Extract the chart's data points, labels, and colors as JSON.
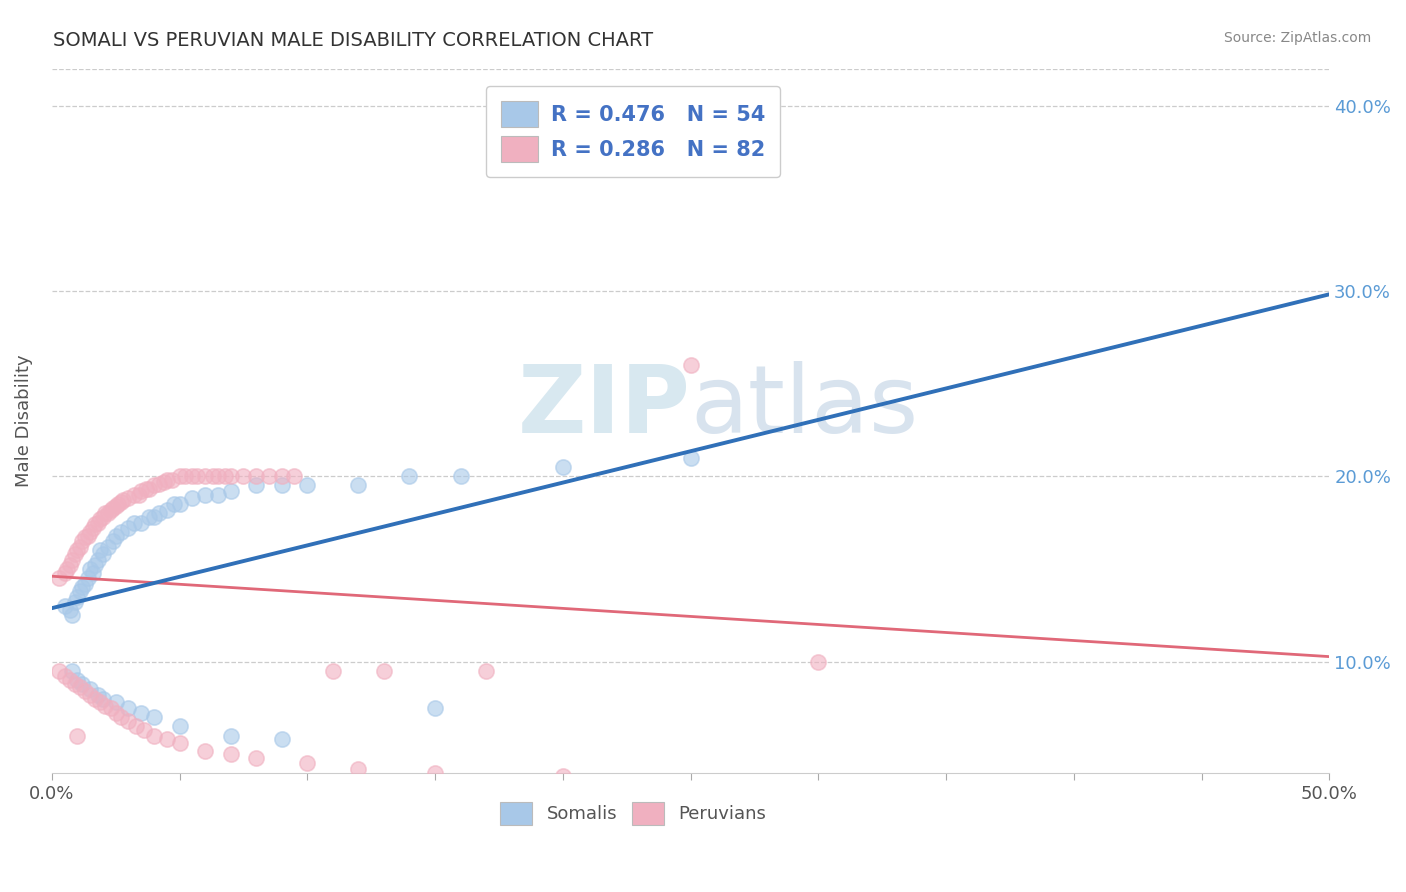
{
  "title": "SOMALI VS PERUVIAN MALE DISABILITY CORRELATION CHART",
  "source": "Source: ZipAtlas.com",
  "ylabel": "Male Disability",
  "xlim": [
    0.0,
    0.5
  ],
  "ylim": [
    0.04,
    0.42
  ],
  "yticks": [
    0.1,
    0.2,
    0.3,
    0.4
  ],
  "ytick_labels": [
    "10.0%",
    "20.0%",
    "30.0%",
    "40.0%"
  ],
  "somali_R": 0.476,
  "somali_N": 54,
  "peruvian_R": 0.286,
  "peruvian_N": 82,
  "somali_color": "#a8c8e8",
  "peruvian_color": "#f0b0c0",
  "somali_line_color": "#3070b8",
  "peruvian_line_color": "#e06878",
  "legend_text_color": "#4472c4",
  "somali_x": [
    0.005,
    0.007,
    0.008,
    0.009,
    0.01,
    0.011,
    0.012,
    0.013,
    0.014,
    0.015,
    0.016,
    0.017,
    0.018,
    0.019,
    0.02,
    0.022,
    0.024,
    0.025,
    0.027,
    0.03,
    0.032,
    0.035,
    0.038,
    0.04,
    0.042,
    0.045,
    0.048,
    0.05,
    0.055,
    0.06,
    0.065,
    0.07,
    0.08,
    0.09,
    0.1,
    0.12,
    0.14,
    0.16,
    0.2,
    0.25,
    0.008,
    0.01,
    0.012,
    0.015,
    0.018,
    0.02,
    0.025,
    0.03,
    0.035,
    0.04,
    0.05,
    0.07,
    0.09,
    0.15
  ],
  "somali_y": [
    0.13,
    0.128,
    0.125,
    0.132,
    0.135,
    0.138,
    0.14,
    0.142,
    0.145,
    0.15,
    0.148,
    0.152,
    0.155,
    0.16,
    0.158,
    0.162,
    0.165,
    0.168,
    0.17,
    0.172,
    0.175,
    0.175,
    0.178,
    0.178,
    0.18,
    0.182,
    0.185,
    0.185,
    0.188,
    0.19,
    0.19,
    0.192,
    0.195,
    0.195,
    0.195,
    0.195,
    0.2,
    0.2,
    0.205,
    0.21,
    0.095,
    0.09,
    0.088,
    0.085,
    0.082,
    0.08,
    0.078,
    0.075,
    0.072,
    0.07,
    0.065,
    0.06,
    0.058,
    0.075
  ],
  "peruvian_x": [
    0.003,
    0.005,
    0.006,
    0.007,
    0.008,
    0.009,
    0.01,
    0.011,
    0.012,
    0.013,
    0.014,
    0.015,
    0.016,
    0.017,
    0.018,
    0.019,
    0.02,
    0.021,
    0.022,
    0.023,
    0.024,
    0.025,
    0.026,
    0.027,
    0.028,
    0.03,
    0.032,
    0.034,
    0.035,
    0.037,
    0.038,
    0.04,
    0.042,
    0.044,
    0.045,
    0.047,
    0.05,
    0.052,
    0.055,
    0.057,
    0.06,
    0.063,
    0.065,
    0.068,
    0.07,
    0.075,
    0.08,
    0.085,
    0.09,
    0.095,
    0.003,
    0.005,
    0.007,
    0.009,
    0.011,
    0.013,
    0.015,
    0.017,
    0.019,
    0.021,
    0.023,
    0.025,
    0.027,
    0.03,
    0.033,
    0.036,
    0.04,
    0.045,
    0.05,
    0.06,
    0.07,
    0.08,
    0.1,
    0.12,
    0.15,
    0.2,
    0.25,
    0.11,
    0.13,
    0.17,
    0.3,
    0.01
  ],
  "peruvian_y": [
    0.145,
    0.148,
    0.15,
    0.152,
    0.155,
    0.158,
    0.16,
    0.162,
    0.165,
    0.167,
    0.168,
    0.17,
    0.172,
    0.174,
    0.175,
    0.177,
    0.178,
    0.18,
    0.18,
    0.182,
    0.183,
    0.184,
    0.185,
    0.186,
    0.187,
    0.188,
    0.19,
    0.19,
    0.192,
    0.193,
    0.193,
    0.195,
    0.196,
    0.197,
    0.198,
    0.198,
    0.2,
    0.2,
    0.2,
    0.2,
    0.2,
    0.2,
    0.2,
    0.2,
    0.2,
    0.2,
    0.2,
    0.2,
    0.2,
    0.2,
    0.095,
    0.092,
    0.09,
    0.088,
    0.086,
    0.084,
    0.082,
    0.08,
    0.078,
    0.076,
    0.075,
    0.072,
    0.07,
    0.068,
    0.065,
    0.063,
    0.06,
    0.058,
    0.056,
    0.052,
    0.05,
    0.048,
    0.045,
    0.042,
    0.04,
    0.038,
    0.26,
    0.095,
    0.095,
    0.095,
    0.1,
    0.06
  ],
  "background_color": "#ffffff",
  "grid_color": "#cccccc"
}
